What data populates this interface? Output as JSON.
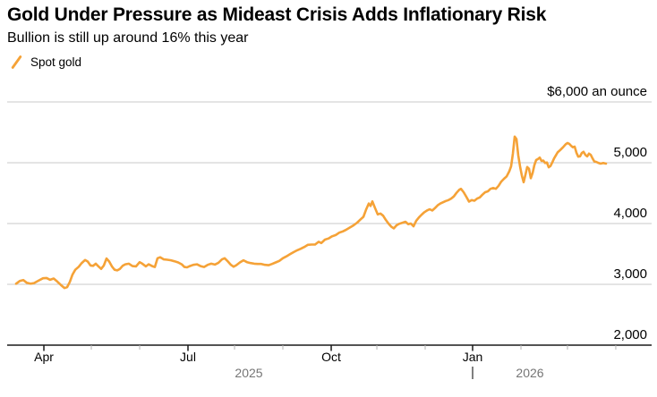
{
  "header": {
    "title": "Gold Under Pressure as Mideast Crisis Adds Inflationary Risk",
    "subtitle": "Bullion is still up around 16% this year"
  },
  "legend": {
    "items": [
      {
        "label": "Spot gold",
        "icon": "line-slash-icon",
        "color": "#F5A237"
      }
    ]
  },
  "colors": {
    "accent_orange": "#F5A237",
    "gridline": "#c8c8c8",
    "axis": "#1a1a1a",
    "minor_tick": "#b4b4b4",
    "muted_text": "#757575",
    "text": "#000000"
  },
  "chart_data": {
    "type": "line",
    "title": "Spot gold",
    "ylabel": "$ an ounce",
    "unit_label": "$6,000 an ounce",
    "y_domain": [
      2000,
      6000
    ],
    "grid": "horizontal",
    "legend_position": "top-left",
    "y_ticks": [
      {
        "label": "$6,000 an ounce",
        "value": 6000
      },
      {
        "label": "5,000",
        "value": 5000
      },
      {
        "label": "4,000",
        "value": 4000
      },
      {
        "label": "3,000",
        "value": 3000
      },
      {
        "label": "2,000",
        "value": 2000
      }
    ],
    "x_domain_years": [
      2025.1925,
      2026.3106
    ],
    "x_ticks": [
      {
        "t": 2025.2562,
        "label": "Apr",
        "major": true
      },
      {
        "t": 2025.3385
      },
      {
        "t": 2025.4224
      },
      {
        "t": 2025.5062,
        "label": "Jul",
        "major": true
      },
      {
        "t": 2025.587
      },
      {
        "t": 2025.6708
      },
      {
        "t": 2025.7547,
        "label": "Oct",
        "major": true
      },
      {
        "t": 2025.8339
      },
      {
        "t": 2025.9177
      },
      {
        "t": 2026.0,
        "label": "Jan",
        "major": true
      },
      {
        "t": 2026.0839
      },
      {
        "t": 2026.1646
      },
      {
        "t": 2026.2484
      }
    ],
    "year_labels": [
      {
        "label": "2025",
        "t": 2025.6118
      },
      {
        "label": "2026",
        "t": 2026.0994
      }
    ],
    "year_divider_t": 2026.0,
    "series": [
      {
        "name": "Spot gold",
        "color": "#F5A237",
        "points": [
          [
            2025.2081,
            3010
          ],
          [
            2025.2143,
            3055
          ],
          [
            2025.2205,
            3070
          ],
          [
            2025.2267,
            3025
          ],
          [
            2025.2329,
            3010
          ],
          [
            2025.2391,
            3020
          ],
          [
            2025.2469,
            3060
          ],
          [
            2025.2547,
            3100
          ],
          [
            2025.2609,
            3105
          ],
          [
            2025.2671,
            3075
          ],
          [
            2025.2733,
            3095
          ],
          [
            2025.2795,
            3045
          ],
          [
            2025.2857,
            2990
          ],
          [
            2025.2919,
            2940
          ],
          [
            2025.2966,
            2955
          ],
          [
            2025.3012,
            3040
          ],
          [
            2025.3059,
            3160
          ],
          [
            2025.3106,
            3240
          ],
          [
            2025.3168,
            3290
          ],
          [
            2025.3214,
            3345
          ],
          [
            2025.3276,
            3400
          ],
          [
            2025.3323,
            3375
          ],
          [
            2025.337,
            3310
          ],
          [
            2025.3416,
            3305
          ],
          [
            2025.3463,
            3340
          ],
          [
            2025.3509,
            3295
          ],
          [
            2025.3556,
            3255
          ],
          [
            2025.3602,
            3310
          ],
          [
            2025.3649,
            3425
          ],
          [
            2025.3696,
            3375
          ],
          [
            2025.3742,
            3295
          ],
          [
            2025.3789,
            3240
          ],
          [
            2025.3835,
            3230
          ],
          [
            2025.3882,
            3255
          ],
          [
            2025.3929,
            3305
          ],
          [
            2025.3975,
            3330
          ],
          [
            2025.4037,
            3340
          ],
          [
            2025.4099,
            3300
          ],
          [
            2025.4161,
            3295
          ],
          [
            2025.4224,
            3365
          ],
          [
            2025.427,
            3340
          ],
          [
            2025.4332,
            3295
          ],
          [
            2025.4379,
            3330
          ],
          [
            2025.4441,
            3300
          ],
          [
            2025.4488,
            3285
          ],
          [
            2025.4534,
            3430
          ],
          [
            2025.4581,
            3445
          ],
          [
            2025.4643,
            3410
          ],
          [
            2025.4705,
            3405
          ],
          [
            2025.4767,
            3395
          ],
          [
            2025.4829,
            3380
          ],
          [
            2025.4891,
            3360
          ],
          [
            2025.4953,
            3330
          ],
          [
            2025.5,
            3285
          ],
          [
            2025.5047,
            3280
          ],
          [
            2025.5093,
            3300
          ],
          [
            2025.5155,
            3320
          ],
          [
            2025.5217,
            3330
          ],
          [
            2025.528,
            3300
          ],
          [
            2025.5342,
            3285
          ],
          [
            2025.5404,
            3320
          ],
          [
            2025.5466,
            3340
          ],
          [
            2025.5528,
            3325
          ],
          [
            2025.559,
            3355
          ],
          [
            2025.5652,
            3410
          ],
          [
            2025.5699,
            3430
          ],
          [
            2025.5745,
            3385
          ],
          [
            2025.5807,
            3320
          ],
          [
            2025.5854,
            3290
          ],
          [
            2025.5901,
            3315
          ],
          [
            2025.5963,
            3360
          ],
          [
            2025.6025,
            3395
          ],
          [
            2025.6087,
            3365
          ],
          [
            2025.6149,
            3350
          ],
          [
            2025.6211,
            3340
          ],
          [
            2025.6273,
            3335
          ],
          [
            2025.6335,
            3335
          ],
          [
            2025.6398,
            3320
          ],
          [
            2025.646,
            3315
          ],
          [
            2025.6522,
            3335
          ],
          [
            2025.6584,
            3360
          ],
          [
            2025.6646,
            3385
          ],
          [
            2025.6708,
            3430
          ],
          [
            2025.677,
            3460
          ],
          [
            2025.6832,
            3495
          ],
          [
            2025.6894,
            3530
          ],
          [
            2025.6957,
            3560
          ],
          [
            2025.7019,
            3585
          ],
          [
            2025.7081,
            3615
          ],
          [
            2025.7143,
            3650
          ],
          [
            2025.7205,
            3655
          ],
          [
            2025.7267,
            3655
          ],
          [
            2025.7329,
            3700
          ],
          [
            2025.7376,
            3680
          ],
          [
            2025.7438,
            3735
          ],
          [
            2025.75,
            3755
          ],
          [
            2025.7562,
            3790
          ],
          [
            2025.7624,
            3810
          ],
          [
            2025.7686,
            3850
          ],
          [
            2025.7748,
            3870
          ],
          [
            2025.7811,
            3900
          ],
          [
            2025.7873,
            3935
          ],
          [
            2025.7935,
            3970
          ],
          [
            2025.7997,
            4015
          ],
          [
            2025.8059,
            4070
          ],
          [
            2025.8106,
            4110
          ],
          [
            2025.8152,
            4230
          ],
          [
            2025.8199,
            4330
          ],
          [
            2025.823,
            4290
          ],
          [
            2025.8261,
            4365
          ],
          [
            2025.8307,
            4255
          ],
          [
            2025.8354,
            4150
          ],
          [
            2025.8401,
            4165
          ],
          [
            2025.8447,
            4130
          ],
          [
            2025.8494,
            4060
          ],
          [
            2025.854,
            4000
          ],
          [
            2025.8587,
            3950
          ],
          [
            2025.8634,
            3920
          ],
          [
            2025.868,
            3970
          ],
          [
            2025.8727,
            3995
          ],
          [
            2025.8789,
            4015
          ],
          [
            2025.8835,
            4030
          ],
          [
            2025.8882,
            3990
          ],
          [
            2025.8929,
            4000
          ],
          [
            2025.8975,
            3955
          ],
          [
            2025.9022,
            4045
          ],
          [
            2025.9068,
            4100
          ],
          [
            2025.9115,
            4145
          ],
          [
            2025.9161,
            4185
          ],
          [
            2025.9208,
            4215
          ],
          [
            2025.9255,
            4235
          ],
          [
            2025.9301,
            4215
          ],
          [
            2025.9348,
            4255
          ],
          [
            2025.9394,
            4300
          ],
          [
            2025.9441,
            4330
          ],
          [
            2025.9488,
            4350
          ],
          [
            2025.9534,
            4370
          ],
          [
            2025.9581,
            4385
          ],
          [
            2025.9627,
            4410
          ],
          [
            2025.9674,
            4445
          ],
          [
            2025.972,
            4505
          ],
          [
            2025.9767,
            4555
          ],
          [
            2025.9798,
            4570
          ],
          [
            2025.9845,
            4515
          ],
          [
            2025.9891,
            4440
          ],
          [
            2025.9938,
            4360
          ],
          [
            2025.9984,
            4385
          ],
          [
            2026.0031,
            4375
          ],
          [
            2026.0078,
            4410
          ],
          [
            2026.0124,
            4430
          ],
          [
            2026.0171,
            4475
          ],
          [
            2026.0217,
            4515
          ],
          [
            2026.0264,
            4530
          ],
          [
            2026.0311,
            4570
          ],
          [
            2026.0357,
            4585
          ],
          [
            2026.0404,
            4570
          ],
          [
            2026.045,
            4620
          ],
          [
            2026.0497,
            4690
          ],
          [
            2026.0543,
            4735
          ],
          [
            2026.059,
            4775
          ],
          [
            2026.0637,
            4860
          ],
          [
            2026.0668,
            4940
          ],
          [
            2026.0699,
            5150
          ],
          [
            2026.073,
            5430
          ],
          [
            2026.0761,
            5390
          ],
          [
            2026.0792,
            5120
          ],
          [
            2026.0823,
            4940
          ],
          [
            2026.0854,
            4790
          ],
          [
            2026.0885,
            4680
          ],
          [
            2026.0916,
            4800
          ],
          [
            2026.0947,
            4930
          ],
          [
            2026.0978,
            4900
          ],
          [
            2026.1009,
            4745
          ],
          [
            2026.104,
            4830
          ],
          [
            2026.1071,
            4960
          ],
          [
            2026.1102,
            5045
          ],
          [
            2026.1134,
            5060
          ],
          [
            2026.1165,
            5085
          ],
          [
            2026.1196,
            5030
          ],
          [
            2026.1227,
            5035
          ],
          [
            2026.1258,
            4995
          ],
          [
            2026.1289,
            5005
          ],
          [
            2026.132,
            4925
          ],
          [
            2026.1351,
            4945
          ],
          [
            2026.1382,
            5005
          ],
          [
            2026.1413,
            5070
          ],
          [
            2026.1444,
            5120
          ],
          [
            2026.1475,
            5170
          ],
          [
            2026.1522,
            5210
          ],
          [
            2026.1568,
            5255
          ],
          [
            2026.1615,
            5305
          ],
          [
            2026.1646,
            5325
          ],
          [
            2026.1677,
            5310
          ],
          [
            2026.1708,
            5280
          ],
          [
            2026.1739,
            5255
          ],
          [
            2026.177,
            5265
          ],
          [
            2026.1801,
            5165
          ],
          [
            2026.1832,
            5100
          ],
          [
            2026.1863,
            5105
          ],
          [
            2026.1894,
            5160
          ],
          [
            2026.1925,
            5180
          ],
          [
            2026.1957,
            5130
          ],
          [
            2026.1988,
            5105
          ],
          [
            2026.2019,
            5150
          ],
          [
            2026.205,
            5130
          ],
          [
            2026.2081,
            5070
          ],
          [
            2026.2112,
            5020
          ],
          [
            2026.2143,
            5015
          ],
          [
            2026.2174,
            5000
          ],
          [
            2026.222,
            4985
          ],
          [
            2026.2267,
            4995
          ],
          [
            2026.2314,
            4985
          ]
        ]
      }
    ]
  }
}
